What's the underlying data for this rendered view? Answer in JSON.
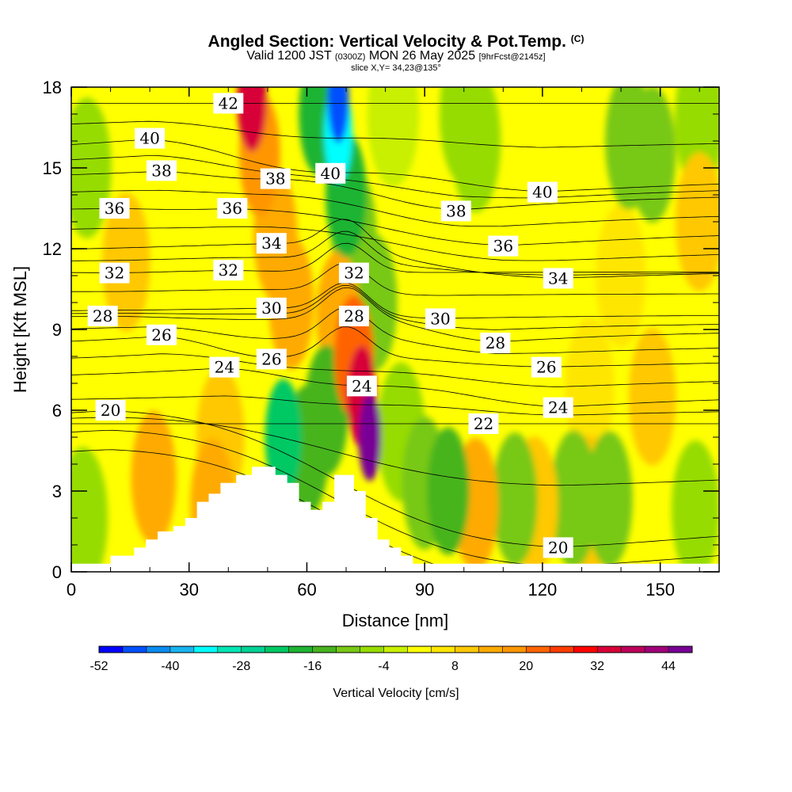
{
  "header": {
    "title": "Angled Section: Vertical Velocity & Pot.Temp.",
    "copyright": "(C)",
    "valid_prefix": "Valid 1200 JST",
    "utc": "(0300Z)",
    "valid_suffix": "MON 26 May 2025",
    "fcst": "[9hrFcst@2145z]",
    "slice": "slice X,Y= 34,23@135°"
  },
  "chart_data": {
    "type": "heatmap",
    "title": "Angled Section: Vertical Velocity & Pot.Temp.",
    "xlabel": "Distance [nm]",
    "ylabel": "Height [Kft MSL]",
    "xlim": [
      0,
      165
    ],
    "ylim": [
      0,
      18
    ],
    "x_ticks": [
      0,
      30,
      60,
      90,
      120,
      150
    ],
    "y_ticks": [
      0,
      3,
      6,
      9,
      12,
      15,
      18
    ],
    "terrain": {
      "x": [
        0,
        10,
        10,
        16,
        16,
        19,
        19,
        22,
        22,
        26,
        26,
        29,
        29,
        32,
        32,
        35,
        35,
        38,
        38,
        42,
        42,
        46,
        46,
        52,
        52,
        55,
        55,
        58,
        58,
        61,
        61,
        64,
        64,
        67,
        67,
        72,
        72,
        75,
        75,
        78,
        78,
        81,
        81,
        84,
        84,
        87,
        87,
        165
      ],
      "height": [
        0.3,
        0.3,
        0.6,
        0.6,
        0.9,
        0.9,
        1.2,
        1.2,
        1.5,
        1.5,
        1.7,
        1.7,
        2.0,
        2.0,
        2.6,
        2.6,
        2.9,
        2.9,
        3.3,
        3.3,
        3.6,
        3.6,
        3.9,
        3.9,
        3.6,
        3.6,
        3.3,
        3.3,
        2.6,
        2.6,
        2.3,
        2.3,
        2.6,
        2.6,
        3.6,
        3.6,
        3.0,
        3.0,
        2.0,
        2.0,
        1.2,
        1.2,
        0.9,
        0.9,
        0.6,
        0.6,
        0.3,
        0.3
      ]
    },
    "vertical_velocity": {
      "name": "Vertical Velocity [cm/s]",
      "background": 1,
      "features": [
        {
          "x": 76,
          "y": 5,
          "value": 44
        },
        {
          "x": 74,
          "y": 6.5,
          "value": 34
        },
        {
          "x": 72,
          "y": 8,
          "value": 20
        },
        {
          "x": 46,
          "y": 17.5,
          "value": 34
        },
        {
          "x": 48,
          "y": 15.5,
          "value": 18
        },
        {
          "x": 52,
          "y": 12.5,
          "value": 14
        },
        {
          "x": 56,
          "y": 10,
          "value": 12
        },
        {
          "x": 68,
          "y": 9.5,
          "value": 14
        },
        {
          "x": 36,
          "y": 2.5,
          "value": 13
        },
        {
          "x": 21,
          "y": 3.5,
          "value": 12
        },
        {
          "x": 14,
          "y": 11.5,
          "value": 8
        },
        {
          "x": 38,
          "y": 5,
          "value": 8
        },
        {
          "x": 68,
          "y": 17.5,
          "value": -46
        },
        {
          "x": 68,
          "y": 16.3,
          "value": -36
        },
        {
          "x": 63,
          "y": 17,
          "value": -20
        },
        {
          "x": 70,
          "y": 14,
          "value": -18
        },
        {
          "x": 72,
          "y": 12.5,
          "value": -12
        },
        {
          "x": 77,
          "y": 10,
          "value": -9
        },
        {
          "x": 54,
          "y": 5,
          "value": -24
        },
        {
          "x": 60,
          "y": 4.5,
          "value": -14
        },
        {
          "x": 65,
          "y": 6,
          "value": -14
        },
        {
          "x": 84,
          "y": 5.2,
          "value": -8
        },
        {
          "x": 90,
          "y": 3.3,
          "value": -12
        },
        {
          "x": 96,
          "y": 3,
          "value": -16
        },
        {
          "x": 113,
          "y": 2.7,
          "value": -12
        },
        {
          "x": 128,
          "y": 2.7,
          "value": -9
        },
        {
          "x": 137,
          "y": 2.7,
          "value": -10
        },
        {
          "x": 103,
          "y": 2.5,
          "value": 12
        },
        {
          "x": 118,
          "y": 2.5,
          "value": 10
        },
        {
          "x": 132,
          "y": 2.5,
          "value": 8
        },
        {
          "x": 148,
          "y": 6.5,
          "value": 9
        },
        {
          "x": 160,
          "y": 13,
          "value": 8
        },
        {
          "x": 142,
          "y": 16,
          "value": -9
        },
        {
          "x": 148,
          "y": 15.5,
          "value": -10
        },
        {
          "x": 160,
          "y": 16.8,
          "value": -6
        },
        {
          "x": 100,
          "y": 17,
          "value": -7
        },
        {
          "x": 103,
          "y": 16,
          "value": -5
        },
        {
          "x": 3,
          "y": 2,
          "value": -6
        },
        {
          "x": 4,
          "y": 15,
          "value": -7
        },
        {
          "x": 159,
          "y": 2.3,
          "value": -8
        },
        {
          "x": 82,
          "y": 17,
          "value": -3
        },
        {
          "x": 132,
          "y": 6.8,
          "value": 6
        },
        {
          "x": 140,
          "y": 11,
          "value": 5
        }
      ]
    },
    "potential_temperature": {
      "name": "Pot.Temp.",
      "levels": [
        18,
        19,
        20,
        21,
        22,
        23,
        24,
        25,
        26,
        27,
        28,
        29,
        30,
        31,
        32,
        33,
        34,
        35,
        36,
        37,
        38,
        39,
        40,
        41,
        42
      ],
      "labels": [
        {
          "text": "42",
          "x": 40,
          "y": 17.4
        },
        {
          "text": "40",
          "x": 20,
          "y": 16.1
        },
        {
          "text": "40",
          "x": 66,
          "y": 14.8
        },
        {
          "text": "40",
          "x": 120,
          "y": 14.1
        },
        {
          "text": "38",
          "x": 23,
          "y": 14.9
        },
        {
          "text": "38",
          "x": 52,
          "y": 14.6
        },
        {
          "text": "38",
          "x": 98,
          "y": 13.4
        },
        {
          "text": "36",
          "x": 11,
          "y": 13.5
        },
        {
          "text": "36",
          "x": 41,
          "y": 13.5
        },
        {
          "text": "36",
          "x": 110,
          "y": 12.1
        },
        {
          "text": "34",
          "x": 51,
          "y": 12.2
        },
        {
          "text": "34",
          "x": 124,
          "y": 10.9
        },
        {
          "text": "32",
          "x": 11,
          "y": 11.1
        },
        {
          "text": "32",
          "x": 40,
          "y": 11.2
        },
        {
          "text": "32",
          "x": 72,
          "y": 11.1
        },
        {
          "text": "30",
          "x": 51,
          "y": 9.8
        },
        {
          "text": "30",
          "x": 94,
          "y": 9.4
        },
        {
          "text": "28",
          "x": 8,
          "y": 9.5
        },
        {
          "text": "28",
          "x": 72,
          "y": 9.5
        },
        {
          "text": "28",
          "x": 108,
          "y": 8.5
        },
        {
          "text": "26",
          "x": 23,
          "y": 8.8
        },
        {
          "text": "26",
          "x": 51,
          "y": 7.9
        },
        {
          "text": "26",
          "x": 121,
          "y": 7.6
        },
        {
          "text": "24",
          "x": 39,
          "y": 7.6
        },
        {
          "text": "24",
          "x": 74,
          "y": 6.9
        },
        {
          "text": "24",
          "x": 124,
          "y": 6.1
        },
        {
          "text": "22",
          "x": 105,
          "y": 5.5
        },
        {
          "text": "20",
          "x": 10,
          "y": 6.0
        },
        {
          "text": "20",
          "x": 124,
          "y": 0.9
        }
      ]
    },
    "colorbar": {
      "title": "Vertical Velocity [cm/s]",
      "tick_labels": [
        "-52",
        "-40",
        "-28",
        "-16",
        "-4",
        "8",
        "20",
        "32",
        "44"
      ],
      "boundaries": [
        -52,
        -48,
        -44,
        -40,
        -36,
        -32,
        -28,
        -24,
        -20,
        -16,
        -12,
        -8,
        -4,
        0,
        4,
        8,
        12,
        16,
        20,
        24,
        28,
        32,
        36,
        40,
        44,
        48
      ],
      "colors": [
        "#0000ff",
        "#0050ff",
        "#0a8cf0",
        "#18b4f0",
        "#00ffff",
        "#00e6b4",
        "#00d296",
        "#00c864",
        "#1eb432",
        "#46b41e",
        "#78c814",
        "#96dc00",
        "#c8f000",
        "#ffff00",
        "#ffe600",
        "#ffc800",
        "#ffaa00",
        "#ff9600",
        "#ff6400",
        "#ff3c00",
        "#ff0000",
        "#d70037",
        "#be005a",
        "#a00078",
        "#780096"
      ]
    }
  }
}
